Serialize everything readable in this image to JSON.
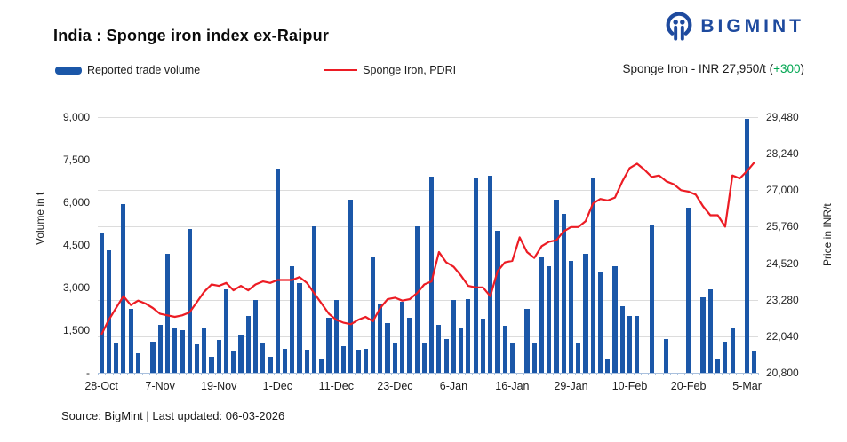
{
  "header": {
    "title": "India : Sponge iron index ex-Raipur",
    "brand": "BIGMINT",
    "brand_color": "#1e4a9e"
  },
  "legend": [
    {
      "label": "Reported trade volume",
      "type": "bar",
      "color": "#1b57a8"
    },
    {
      "label": "Sponge Iron, PDRI",
      "type": "line",
      "color": "#ec1c24"
    }
  ],
  "annotation": {
    "prefix": "Sponge Iron - INR 27,950/t ",
    "open": "(",
    "change": "+300",
    "close": ")",
    "change_color": "#00a651"
  },
  "footer": {
    "source": "Source: BigMint | Last updated: 06-03-2026"
  },
  "chart_data": {
    "type": "bar+line",
    "title": "India : Sponge iron index ex-Raipur",
    "grid": "horizontal",
    "left_axis": {
      "label": "Volume in t",
      "min": 0,
      "max": 9000,
      "ticks": [
        "9,000",
        "7,500",
        "6,000",
        "4,500",
        "3,000",
        "1,500",
        "-"
      ]
    },
    "right_axis": {
      "label": "Price in INR/t",
      "min": 20800,
      "max": 29480,
      "ticks": [
        "29,480",
        "28,240",
        "27,000",
        "25,760",
        "24,520",
        "23,280",
        "22,040",
        "20,800"
      ]
    },
    "x_tick_labels": [
      "28-Oct",
      "7-Nov",
      "19-Nov",
      "1-Dec",
      "11-Dec",
      "23-Dec",
      "6-Jan",
      "16-Jan",
      "29-Jan",
      "10-Feb",
      "20-Feb",
      "5-Mar"
    ],
    "x_tick_indices": [
      0,
      8,
      16,
      24,
      32,
      40,
      48,
      56,
      64,
      72,
      80,
      88
    ],
    "series": [
      {
        "name": "Reported trade volume",
        "type": "bar",
        "color": "#1b57a8",
        "axis": "left",
        "values": [
          4950,
          4300,
          1050,
          5950,
          2250,
          700,
          null,
          1100,
          1700,
          4200,
          1600,
          1500,
          5050,
          1000,
          1550,
          550,
          1150,
          2950,
          750,
          1350,
          2000,
          2550,
          1050,
          550,
          7200,
          850,
          3750,
          3150,
          800,
          5150,
          500,
          1950,
          2550,
          950,
          6100,
          800,
          850,
          4100,
          2450,
          1750,
          1050,
          2500,
          1950,
          5150,
          1050,
          6900,
          1700,
          1200,
          2550,
          1550,
          2600,
          6850,
          1900,
          6950,
          5000,
          1650,
          1050,
          null,
          2250,
          1050,
          4050,
          3750,
          6100,
          5600,
          3950,
          1050,
          4200,
          6850,
          3550,
          500,
          3750,
          2350,
          2000,
          2000,
          null,
          5200,
          null,
          1200,
          null,
          null,
          5800,
          null,
          2650,
          2950,
          500,
          1100,
          1550,
          null,
          8950,
          750
        ]
      },
      {
        "name": "Sponge Iron, PDRI",
        "type": "line",
        "color": "#ec1c24",
        "axis": "right",
        "values": [
          22100,
          22600,
          23000,
          23400,
          23100,
          23250,
          23150,
          23000,
          22800,
          22750,
          22700,
          22750,
          22850,
          23200,
          23550,
          23800,
          23750,
          23850,
          23600,
          23750,
          23600,
          23800,
          23900,
          23850,
          23950,
          23950,
          23950,
          24050,
          23850,
          23500,
          23150,
          22800,
          22600,
          22500,
          22450,
          22600,
          22700,
          22550,
          23000,
          23300,
          23350,
          23250,
          23300,
          23500,
          23800,
          23900,
          24900,
          24550,
          24400,
          24100,
          23750,
          23700,
          23700,
          23400,
          24250,
          24550,
          24600,
          25400,
          24900,
          24700,
          25100,
          25250,
          25300,
          25600,
          25750,
          25750,
          25950,
          26550,
          26700,
          26650,
          26750,
          27300,
          27750,
          27900,
          27700,
          27450,
          27500,
          27300,
          27200,
          27000,
          26950,
          26850,
          26450,
          26150,
          26150,
          25760,
          27500,
          27400,
          27650,
          27950
        ]
      }
    ]
  }
}
